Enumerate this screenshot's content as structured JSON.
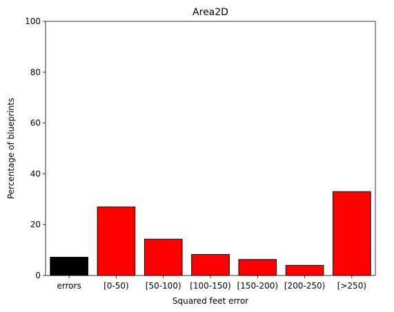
{
  "chart_data": {
    "type": "bar",
    "title": "Area2D",
    "xlabel": "Squared feet error",
    "ylabel": "Percentage of blueprints",
    "categories": [
      "errors",
      "[0-50)",
      "[50-100)",
      "[100-150)",
      "[150-200)",
      "[200-250)",
      "[>250)"
    ],
    "values": [
      7.2,
      27.0,
      14.3,
      8.3,
      6.3,
      4.0,
      33.0
    ],
    "bar_colors": [
      "#000000",
      "#ff0000",
      "#ff0000",
      "#ff0000",
      "#ff0000",
      "#ff0000",
      "#ff0000"
    ],
    "ylim": [
      0,
      100
    ],
    "yticks": [
      0,
      20,
      40,
      60,
      80,
      100
    ],
    "grid": false,
    "legend": "none"
  }
}
